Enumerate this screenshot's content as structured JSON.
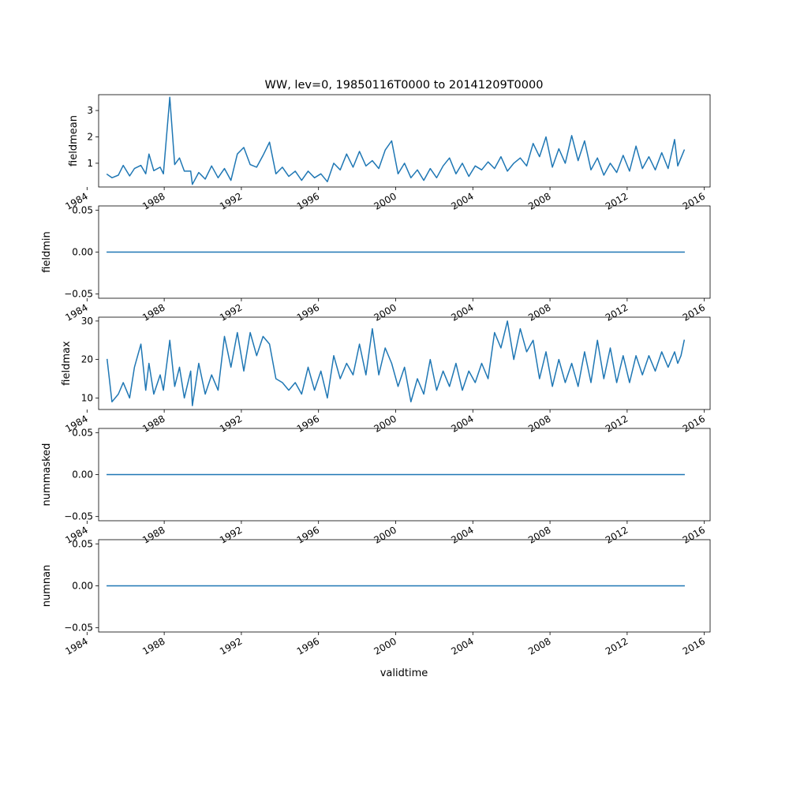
{
  "title": "WW, lev=0, 19850116T0000 to 20141209T0000",
  "chart_data": {
    "type": "line",
    "title": "WW, lev=0, 19850116T0000 to 20141209T0000",
    "xlabel": "validtime",
    "x_range": [
      "1985-01-16",
      "2014-12-09"
    ],
    "x_ticks": [
      "1984",
      "1988",
      "1992",
      "1996",
      "2000",
      "2004",
      "2008",
      "2012",
      "2016"
    ],
    "line_color": "#1f77b4",
    "subplots": [
      {
        "ylabel": "fieldmean",
        "yticks": [
          "1",
          "2",
          "3"
        ],
        "ylim": [
          0.1,
          3.6
        ],
        "series": [
          {
            "x": "1985-01",
            "y": 0.58
          },
          {
            "x": "1985-04",
            "y": 0.45
          },
          {
            "x": "1985-08",
            "y": 0.55
          },
          {
            "x": "1985-11",
            "y": 0.92
          },
          {
            "x": "1986-03",
            "y": 0.52
          },
          {
            "x": "1986-06",
            "y": 0.8
          },
          {
            "x": "1986-10",
            "y": 0.92
          },
          {
            "x": "1987-01",
            "y": 0.6
          },
          {
            "x": "1987-03",
            "y": 1.35
          },
          {
            "x": "1987-06",
            "y": 0.72
          },
          {
            "x": "1987-10",
            "y": 0.85
          },
          {
            "x": "1987-12",
            "y": 0.6
          },
          {
            "x": "1988-04",
            "y": 3.5
          },
          {
            "x": "1988-07",
            "y": 0.95
          },
          {
            "x": "1988-10",
            "y": 1.2
          },
          {
            "x": "1989-01",
            "y": 0.7
          },
          {
            "x": "1989-05",
            "y": 0.7
          },
          {
            "x": "1989-06",
            "y": 0.2
          },
          {
            "x": "1989-10",
            "y": 0.65
          },
          {
            "x": "1990-02",
            "y": 0.4
          },
          {
            "x": "1990-06",
            "y": 0.9
          },
          {
            "x": "1990-10",
            "y": 0.45
          },
          {
            "x": "1991-02",
            "y": 0.8
          },
          {
            "x": "1991-06",
            "y": 0.35
          },
          {
            "x": "1991-10",
            "y": 1.35
          },
          {
            "x": "1992-02",
            "y": 1.6
          },
          {
            "x": "1992-06",
            "y": 0.95
          },
          {
            "x": "1992-10",
            "y": 0.85
          },
          {
            "x": "1993-02",
            "y": 1.3
          },
          {
            "x": "1993-06",
            "y": 1.8
          },
          {
            "x": "1993-10",
            "y": 0.6
          },
          {
            "x": "1994-02",
            "y": 0.85
          },
          {
            "x": "1994-06",
            "y": 0.5
          },
          {
            "x": "1994-10",
            "y": 0.7
          },
          {
            "x": "1995-02",
            "y": 0.35
          },
          {
            "x": "1995-06",
            "y": 0.7
          },
          {
            "x": "1995-10",
            "y": 0.45
          },
          {
            "x": "1996-02",
            "y": 0.6
          },
          {
            "x": "1996-06",
            "y": 0.3
          },
          {
            "x": "1996-10",
            "y": 1.0
          },
          {
            "x": "1997-02",
            "y": 0.75
          },
          {
            "x": "1997-06",
            "y": 1.35
          },
          {
            "x": "1997-10",
            "y": 0.85
          },
          {
            "x": "1998-02",
            "y": 1.45
          },
          {
            "x": "1998-06",
            "y": 0.9
          },
          {
            "x": "1998-10",
            "y": 1.1
          },
          {
            "x": "1999-02",
            "y": 0.8
          },
          {
            "x": "1999-06",
            "y": 1.5
          },
          {
            "x": "1999-10",
            "y": 1.85
          },
          {
            "x": "2000-02",
            "y": 0.6
          },
          {
            "x": "2000-06",
            "y": 1.0
          },
          {
            "x": "2000-10",
            "y": 0.45
          },
          {
            "x": "2001-02",
            "y": 0.75
          },
          {
            "x": "2001-06",
            "y": 0.35
          },
          {
            "x": "2001-10",
            "y": 0.8
          },
          {
            "x": "2002-02",
            "y": 0.45
          },
          {
            "x": "2002-06",
            "y": 0.9
          },
          {
            "x": "2002-10",
            "y": 1.2
          },
          {
            "x": "2003-02",
            "y": 0.6
          },
          {
            "x": "2003-06",
            "y": 1.0
          },
          {
            "x": "2003-10",
            "y": 0.5
          },
          {
            "x": "2004-02",
            "y": 0.9
          },
          {
            "x": "2004-06",
            "y": 0.75
          },
          {
            "x": "2004-10",
            "y": 1.05
          },
          {
            "x": "2005-02",
            "y": 0.8
          },
          {
            "x": "2005-06",
            "y": 1.25
          },
          {
            "x": "2005-10",
            "y": 0.7
          },
          {
            "x": "2006-02",
            "y": 1.0
          },
          {
            "x": "2006-06",
            "y": 1.2
          },
          {
            "x": "2006-10",
            "y": 0.9
          },
          {
            "x": "2007-02",
            "y": 1.75
          },
          {
            "x": "2007-06",
            "y": 1.25
          },
          {
            "x": "2007-10",
            "y": 2.0
          },
          {
            "x": "2008-02",
            "y": 0.85
          },
          {
            "x": "2008-06",
            "y": 1.55
          },
          {
            "x": "2008-10",
            "y": 1.0
          },
          {
            "x": "2009-02",
            "y": 2.05
          },
          {
            "x": "2009-06",
            "y": 1.1
          },
          {
            "x": "2009-10",
            "y": 1.85
          },
          {
            "x": "2010-02",
            "y": 0.75
          },
          {
            "x": "2010-06",
            "y": 1.2
          },
          {
            "x": "2010-10",
            "y": 0.55
          },
          {
            "x": "2011-02",
            "y": 1.0
          },
          {
            "x": "2011-06",
            "y": 0.65
          },
          {
            "x": "2011-10",
            "y": 1.3
          },
          {
            "x": "2012-02",
            "y": 0.7
          },
          {
            "x": "2012-06",
            "y": 1.65
          },
          {
            "x": "2012-10",
            "y": 0.8
          },
          {
            "x": "2013-02",
            "y": 1.25
          },
          {
            "x": "2013-06",
            "y": 0.75
          },
          {
            "x": "2013-10",
            "y": 1.4
          },
          {
            "x": "2014-02",
            "y": 0.8
          },
          {
            "x": "2014-06",
            "y": 1.9
          },
          {
            "x": "2014-08",
            "y": 0.9
          },
          {
            "x": "2014-10",
            "y": 1.2
          },
          {
            "x": "2014-12",
            "y": 1.5
          }
        ]
      },
      {
        "ylabel": "fieldmin",
        "yticks": [
          "−0.05",
          "0.00",
          "0.05"
        ],
        "ylim": [
          -0.055,
          0.055
        ],
        "series": [
          {
            "x": "1985-01",
            "y": 0.0
          },
          {
            "x": "2014-12",
            "y": 0.0
          }
        ]
      },
      {
        "ylabel": "fieldmax",
        "yticks": [
          "10",
          "20",
          "30"
        ],
        "ylim": [
          7,
          31
        ],
        "series": [
          {
            "x": "1985-01",
            "y": 20
          },
          {
            "x": "1985-04",
            "y": 9
          },
          {
            "x": "1985-08",
            "y": 11
          },
          {
            "x": "1985-11",
            "y": 14
          },
          {
            "x": "1986-03",
            "y": 10
          },
          {
            "x": "1986-06",
            "y": 18
          },
          {
            "x": "1986-10",
            "y": 24
          },
          {
            "x": "1987-01",
            "y": 12
          },
          {
            "x": "1987-03",
            "y": 19
          },
          {
            "x": "1987-06",
            "y": 11
          },
          {
            "x": "1987-10",
            "y": 16
          },
          {
            "x": "1987-12",
            "y": 12
          },
          {
            "x": "1988-04",
            "y": 25
          },
          {
            "x": "1988-07",
            "y": 13
          },
          {
            "x": "1988-10",
            "y": 18
          },
          {
            "x": "1989-01",
            "y": 10
          },
          {
            "x": "1989-05",
            "y": 17
          },
          {
            "x": "1989-06",
            "y": 8
          },
          {
            "x": "1989-10",
            "y": 19
          },
          {
            "x": "1990-02",
            "y": 11
          },
          {
            "x": "1990-06",
            "y": 16
          },
          {
            "x": "1990-10",
            "y": 12
          },
          {
            "x": "1991-02",
            "y": 26
          },
          {
            "x": "1991-06",
            "y": 18
          },
          {
            "x": "1991-10",
            "y": 27
          },
          {
            "x": "1992-02",
            "y": 17
          },
          {
            "x": "1992-06",
            "y": 27
          },
          {
            "x": "1992-10",
            "y": 21
          },
          {
            "x": "1993-02",
            "y": 26
          },
          {
            "x": "1993-06",
            "y": 24
          },
          {
            "x": "1993-10",
            "y": 15
          },
          {
            "x": "1994-02",
            "y": 14
          },
          {
            "x": "1994-06",
            "y": 12
          },
          {
            "x": "1994-10",
            "y": 14
          },
          {
            "x": "1995-02",
            "y": 11
          },
          {
            "x": "1995-06",
            "y": 18
          },
          {
            "x": "1995-10",
            "y": 12
          },
          {
            "x": "1996-02",
            "y": 17
          },
          {
            "x": "1996-06",
            "y": 10
          },
          {
            "x": "1996-10",
            "y": 21
          },
          {
            "x": "1997-02",
            "y": 15
          },
          {
            "x": "1997-06",
            "y": 19
          },
          {
            "x": "1997-10",
            "y": 16
          },
          {
            "x": "1998-02",
            "y": 24
          },
          {
            "x": "1998-06",
            "y": 16
          },
          {
            "x": "1998-10",
            "y": 28
          },
          {
            "x": "1999-02",
            "y": 16
          },
          {
            "x": "1999-06",
            "y": 23
          },
          {
            "x": "1999-10",
            "y": 19
          },
          {
            "x": "2000-02",
            "y": 13
          },
          {
            "x": "2000-06",
            "y": 18
          },
          {
            "x": "2000-10",
            "y": 9
          },
          {
            "x": "2001-02",
            "y": 15
          },
          {
            "x": "2001-06",
            "y": 11
          },
          {
            "x": "2001-10",
            "y": 20
          },
          {
            "x": "2002-02",
            "y": 12
          },
          {
            "x": "2002-06",
            "y": 17
          },
          {
            "x": "2002-10",
            "y": 13
          },
          {
            "x": "2003-02",
            "y": 19
          },
          {
            "x": "2003-06",
            "y": 12
          },
          {
            "x": "2003-10",
            "y": 17
          },
          {
            "x": "2004-02",
            "y": 14
          },
          {
            "x": "2004-06",
            "y": 19
          },
          {
            "x": "2004-10",
            "y": 15
          },
          {
            "x": "2005-02",
            "y": 27
          },
          {
            "x": "2005-06",
            "y": 23
          },
          {
            "x": "2005-10",
            "y": 30
          },
          {
            "x": "2006-02",
            "y": 20
          },
          {
            "x": "2006-06",
            "y": 28
          },
          {
            "x": "2006-10",
            "y": 22
          },
          {
            "x": "2007-02",
            "y": 25
          },
          {
            "x": "2007-06",
            "y": 15
          },
          {
            "x": "2007-10",
            "y": 22
          },
          {
            "x": "2008-02",
            "y": 13
          },
          {
            "x": "2008-06",
            "y": 20
          },
          {
            "x": "2008-10",
            "y": 14
          },
          {
            "x": "2009-02",
            "y": 19
          },
          {
            "x": "2009-06",
            "y": 13
          },
          {
            "x": "2009-10",
            "y": 22
          },
          {
            "x": "2010-02",
            "y": 14
          },
          {
            "x": "2010-06",
            "y": 25
          },
          {
            "x": "2010-10",
            "y": 15
          },
          {
            "x": "2011-02",
            "y": 23
          },
          {
            "x": "2011-06",
            "y": 14
          },
          {
            "x": "2011-10",
            "y": 21
          },
          {
            "x": "2012-02",
            "y": 14
          },
          {
            "x": "2012-06",
            "y": 21
          },
          {
            "x": "2012-10",
            "y": 16
          },
          {
            "x": "2013-02",
            "y": 21
          },
          {
            "x": "2013-06",
            "y": 17
          },
          {
            "x": "2013-10",
            "y": 22
          },
          {
            "x": "2014-02",
            "y": 18
          },
          {
            "x": "2014-06",
            "y": 22
          },
          {
            "x": "2014-08",
            "y": 19
          },
          {
            "x": "2014-10",
            "y": 21
          },
          {
            "x": "2014-12",
            "y": 25
          }
        ]
      },
      {
        "ylabel": "nummasked",
        "yticks": [
          "−0.05",
          "0.00",
          "0.05"
        ],
        "ylim": [
          -0.055,
          0.055
        ],
        "series": [
          {
            "x": "1985-01",
            "y": 0.0
          },
          {
            "x": "2014-12",
            "y": 0.0
          }
        ]
      },
      {
        "ylabel": "numnan",
        "yticks": [
          "−0.05",
          "0.00",
          "0.05"
        ],
        "ylim": [
          -0.055,
          0.055
        ],
        "series": [
          {
            "x": "1985-01",
            "y": 0.0
          },
          {
            "x": "2014-12",
            "y": 0.0
          }
        ]
      }
    ]
  }
}
